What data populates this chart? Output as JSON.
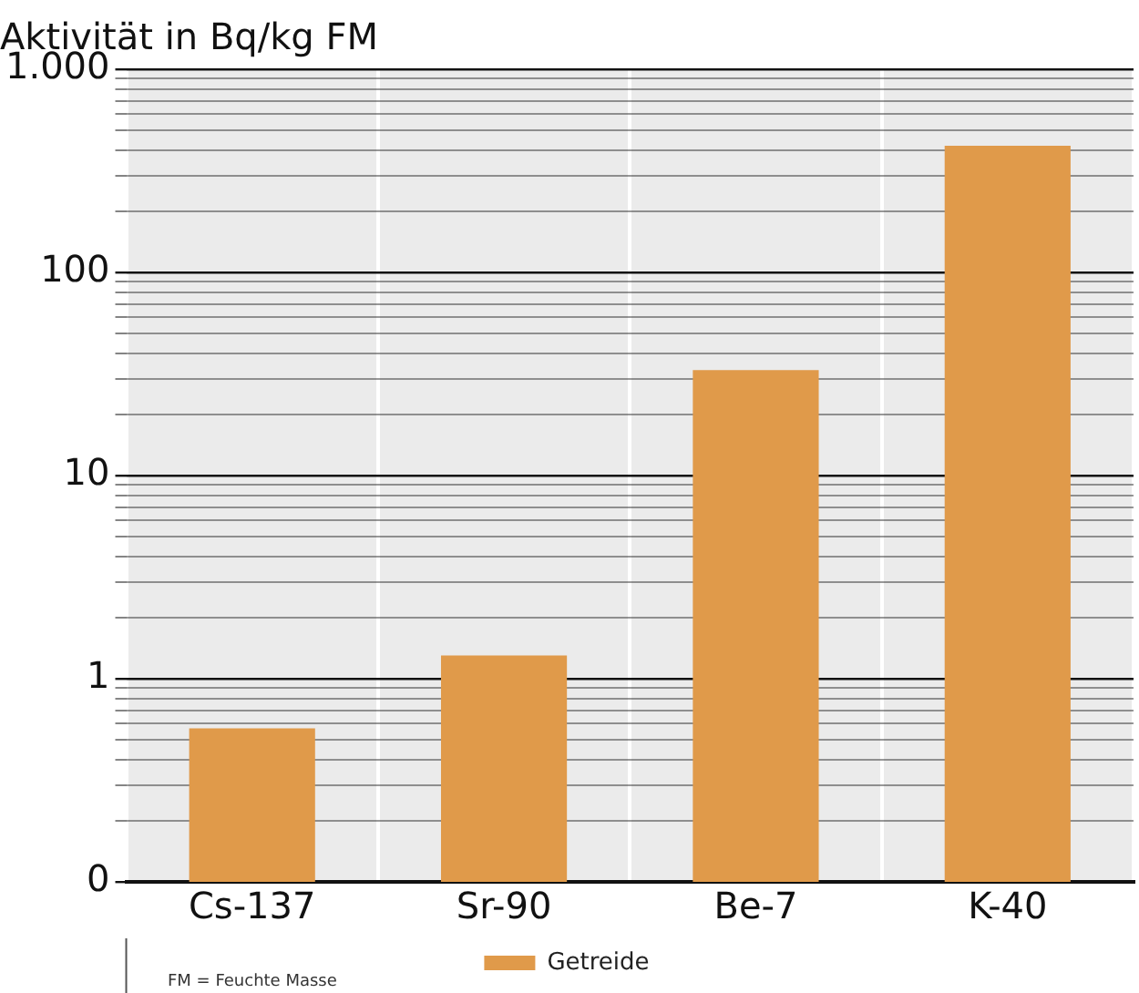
{
  "chart_data": {
    "type": "bar",
    "title": "Aktivität in Bq/kg FM",
    "categories": [
      "Cs-137",
      "Sr-90",
      "Be-7",
      "K-40"
    ],
    "series": [
      {
        "name": "Getreide",
        "color": "#e09a4a",
        "values": [
          0.57,
          1.3,
          33,
          420
        ]
      }
    ],
    "log": "y",
    "ylim": [
      0.1,
      1000
    ],
    "yticks": [
      {
        "value": 0.1,
        "label": "0"
      },
      {
        "value": 0.2,
        "label": null
      },
      {
        "value": 0.3,
        "label": null
      },
      {
        "value": 0.4,
        "label": null
      },
      {
        "value": 0.5,
        "label": null
      },
      {
        "value": 0.6,
        "label": null
      },
      {
        "value": 0.7,
        "label": null
      },
      {
        "value": 0.8,
        "label": null
      },
      {
        "value": 0.9,
        "label": null
      },
      1,
      {
        "value": 2,
        "label": null
      },
      {
        "value": 3,
        "label": null
      },
      {
        "value": 4,
        "label": null
      },
      {
        "value": 5,
        "label": null
      },
      {
        "value": 6,
        "label": null
      },
      {
        "value": 7,
        "label": null
      },
      {
        "value": 8,
        "label": null
      },
      {
        "value": 9,
        "label": null
      },
      10,
      {
        "value": 20,
        "label": null
      },
      {
        "value": 30,
        "label": null
      },
      {
        "value": 40,
        "label": null
      },
      {
        "value": 50,
        "label": null
      },
      {
        "value": 60,
        "label": null
      },
      {
        "value": 70,
        "label": null
      },
      {
        "value": 80,
        "label": null
      },
      {
        "value": 90,
        "label": null
      },
      100,
      {
        "value": 200,
        "label": null
      },
      {
        "value": 300,
        "label": null
      },
      {
        "value": 400,
        "label": null
      },
      {
        "value": 500,
        "label": null
      },
      {
        "value": 600,
        "label": null
      },
      {
        "value": 700,
        "label": null
      },
      {
        "value": 800,
        "label": null
      },
      {
        "value": 900,
        "label": null
      },
      {
        "value": 1000,
        "label": "1.000"
      }
    ],
    "grid": true,
    "legend": "bottom",
    "annotations": [
      "FM = Feuchte Masse"
    ]
  }
}
